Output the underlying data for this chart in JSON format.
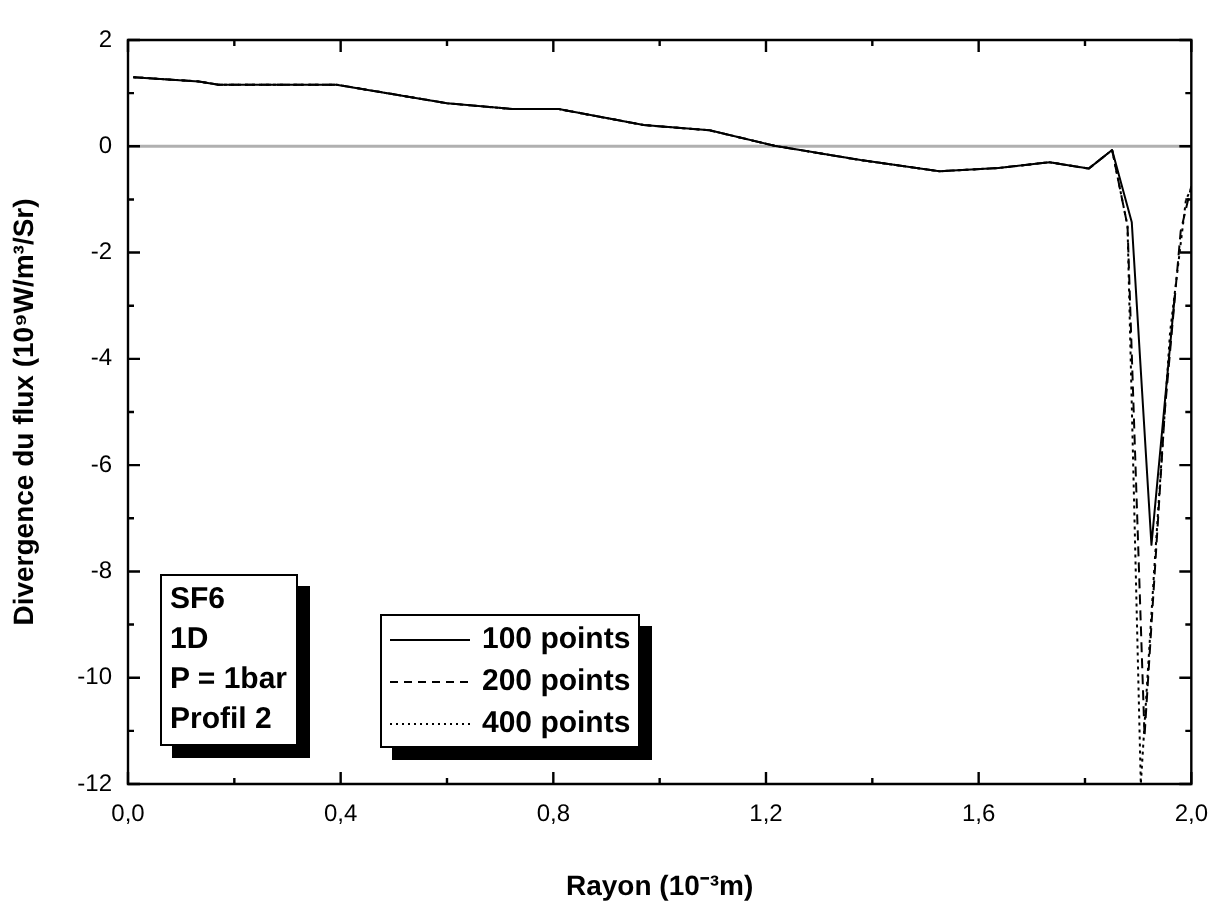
{
  "chart_data": {
    "type": "line",
    "xlabel": "Rayon (10⁻³m)",
    "ylabel": "Divergence du flux (10⁹W/m³/Sr)",
    "xlim": [
      0,
      2.0
    ],
    "xticks": [
      {
        "value": 0,
        "label": "0,0"
      },
      {
        "value": 0.2,
        "label": null
      },
      {
        "value": 0.4,
        "label": "0,4"
      },
      {
        "value": 0.6,
        "label": null
      },
      {
        "value": 0.8,
        "label": "0,8"
      },
      {
        "value": 1.0,
        "label": null
      },
      {
        "value": 1.2,
        "label": "1,2"
      },
      {
        "value": 1.4,
        "label": null
      },
      {
        "value": 1.6,
        "label": "1,6"
      },
      {
        "value": 1.8,
        "label": null
      },
      {
        "value": 2.0,
        "label": "2,0"
      }
    ],
    "ylim": [
      -12,
      2
    ],
    "yticks": [
      -12,
      {
        "value": -11,
        "label": null
      },
      -10,
      {
        "value": -9,
        "label": null
      },
      -8,
      {
        "value": -7,
        "label": null
      },
      -6,
      {
        "value": -5,
        "label": null
      },
      -4,
      {
        "value": -3,
        "label": null
      },
      -2,
      {
        "value": -1,
        "label": null
      },
      0,
      {
        "value": 1,
        "label": null
      },
      2
    ],
    "grid": false,
    "legend": "bottom",
    "marker": "none",
    "ref_lines": [
      {
        "axis": "y",
        "value": 0,
        "color": "#b0b0b0"
      }
    ],
    "annotations": [
      "SF6",
      "1D",
      "P = 1bar",
      "Profil 2"
    ],
    "series": [
      {
        "name": "100 points",
        "color": "#000000",
        "line_style": "solid",
        "x": [
          0.01,
          0.133,
          0.17,
          0.392,
          0.6,
          0.724,
          0.81,
          0.97,
          1.094,
          1.216,
          1.378,
          1.526,
          1.637,
          1.733,
          1.807,
          1.851,
          1.888,
          1.925,
          1.969
        ],
        "values": [
          1.3,
          1.22,
          1.16,
          1.16,
          0.81,
          0.7,
          0.7,
          0.4,
          0.3,
          0.01,
          -0.26,
          -0.47,
          -0.41,
          -0.3,
          -0.42,
          -0.07,
          -1.43,
          -7.5,
          -2.8
        ]
      },
      {
        "name": "200 points",
        "color": "#000000",
        "line_style": "dashed",
        "x": [
          0.01,
          0.133,
          0.17,
          0.392,
          0.6,
          0.724,
          0.81,
          0.97,
          1.094,
          1.216,
          1.378,
          1.526,
          1.637,
          1.733,
          1.807,
          1.851,
          1.88,
          1.912,
          1.95,
          1.98,
          2.0
        ],
        "values": [
          1.3,
          1.22,
          1.16,
          1.16,
          0.81,
          0.7,
          0.7,
          0.4,
          0.3,
          0.01,
          -0.26,
          -0.47,
          -0.41,
          -0.3,
          -0.42,
          -0.07,
          -1.5,
          -11.1,
          -5,
          -1.6,
          -0.75
        ]
      },
      {
        "name": "400 points",
        "color": "#000000",
        "line_style": "dotted",
        "x": [
          0.01,
          0.133,
          0.17,
          0.392,
          0.6,
          0.724,
          0.81,
          0.97,
          1.094,
          1.216,
          1.378,
          1.526,
          1.637,
          1.733,
          1.807,
          1.851,
          1.88,
          1.905,
          1.93,
          1.96,
          1.99,
          2.0
        ],
        "values": [
          1.3,
          1.22,
          1.16,
          1.16,
          0.81,
          0.7,
          0.7,
          0.4,
          0.3,
          0.01,
          -0.26,
          -0.47,
          -0.41,
          -0.3,
          -0.42,
          -0.07,
          -1.5,
          -12,
          -8,
          -3.5,
          -1.0,
          -0.8
        ]
      }
    ]
  }
}
